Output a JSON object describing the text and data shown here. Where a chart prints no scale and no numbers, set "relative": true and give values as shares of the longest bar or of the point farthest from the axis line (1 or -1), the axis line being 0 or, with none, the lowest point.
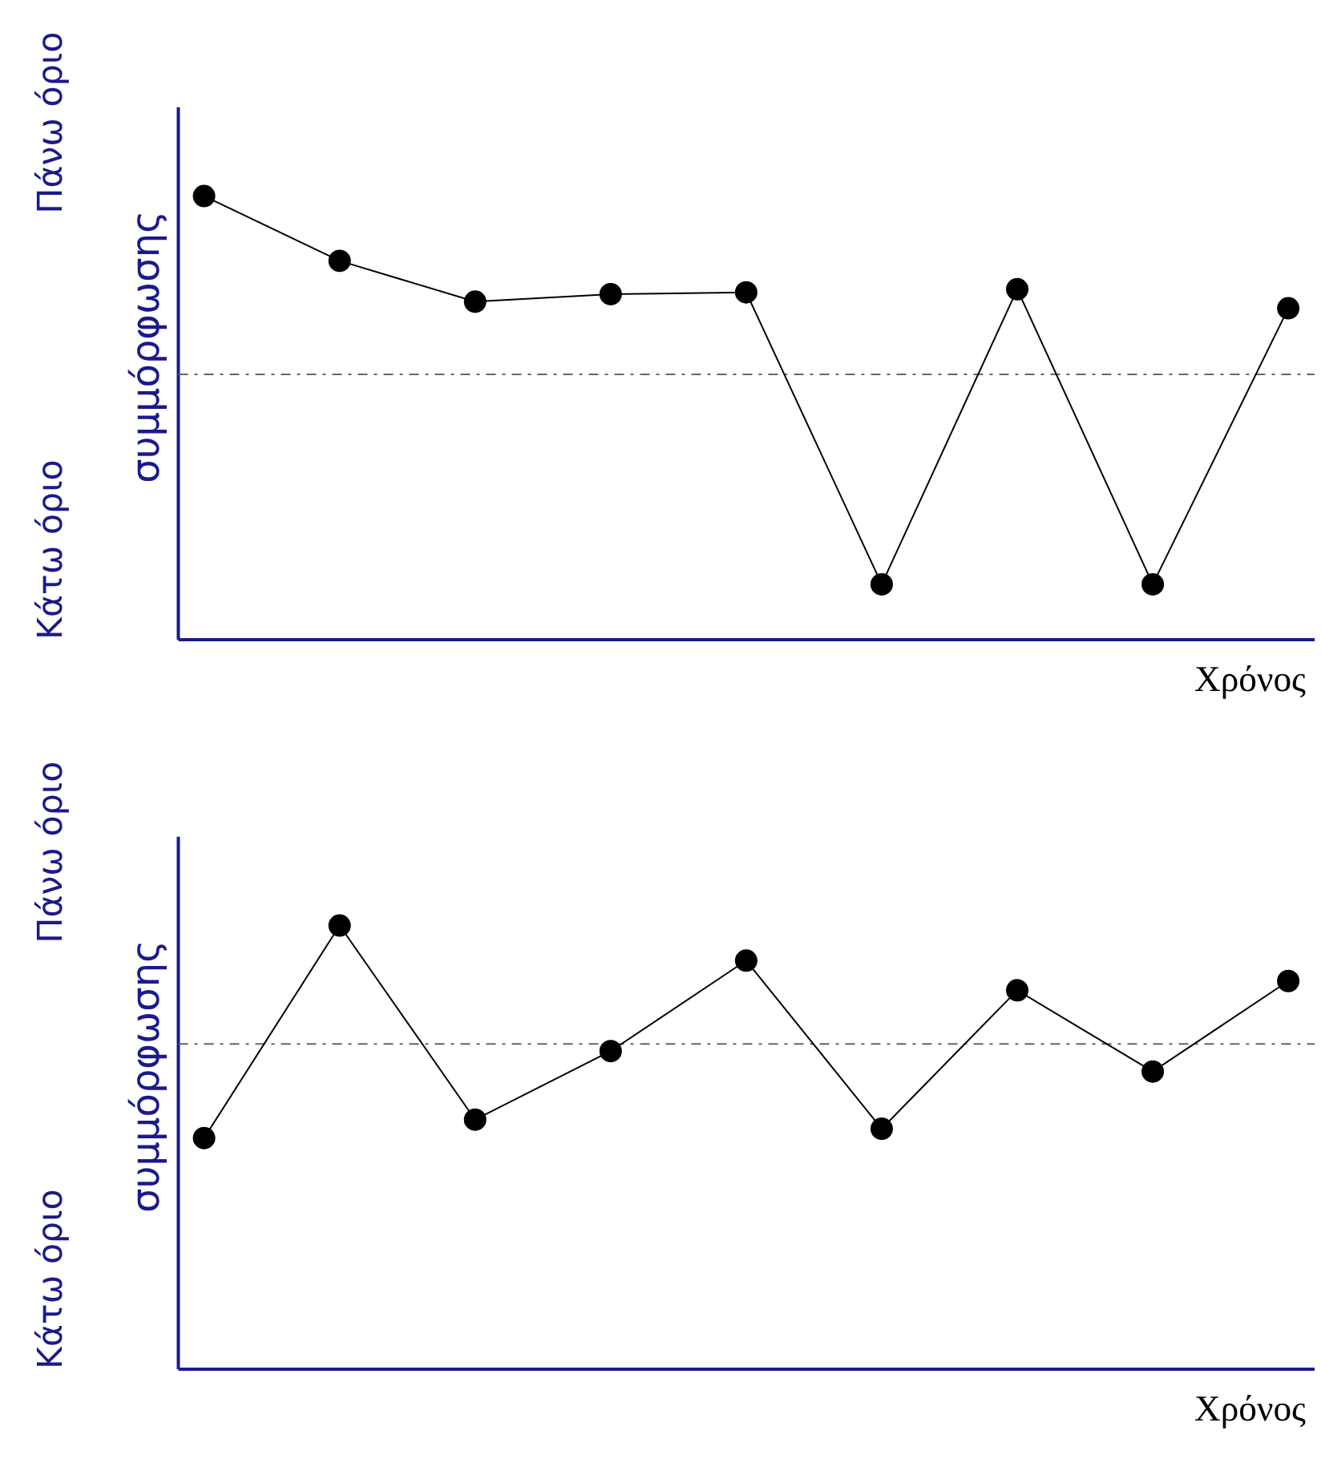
{
  "chart_data": [
    {
      "type": "line",
      "relative": true,
      "xlabel": "Χρόνος",
      "ylabel": "συμμόρφωσης",
      "annotations": [
        "Κάτω όριο",
        "Πάνω όριο"
      ],
      "categories": [
        null,
        null,
        null,
        null,
        null,
        null,
        null,
        null,
        null
      ],
      "series": [
        {
          "color": "#000000",
          "values": [
            1,
            0.854,
            0.762,
            0.779,
            0.783,
            0.125,
            0.79,
            0.125,
            0.747
          ]
        }
      ],
      "ref_lines": [
        {
          "axis": "y",
          "value": 0.598,
          "color": "#666666",
          "line_style": "dashdot"
        }
      ],
      "marker": "circle",
      "grid": false
    },
    {
      "type": "line",
      "relative": true,
      "xlabel": "Χρόνος",
      "ylabel": "συμμόρφωσης",
      "annotations": [
        "Κάτω όριο",
        "Πάνω όριο"
      ],
      "categories": [
        null,
        null,
        null,
        null,
        null,
        null,
        null,
        null,
        null
      ],
      "series": [
        {
          "color": "#000000",
          "values": [
            0.521,
            1,
            0.5625,
            0.717,
            0.921,
            0.542,
            0.854,
            0.671,
            0.875
          ]
        }
      ],
      "ref_lines": [
        {
          "axis": "y",
          "value": 0.733,
          "color": "#666666",
          "line_style": "dashdot"
        }
      ],
      "marker": "circle",
      "grid": false
    }
  ]
}
